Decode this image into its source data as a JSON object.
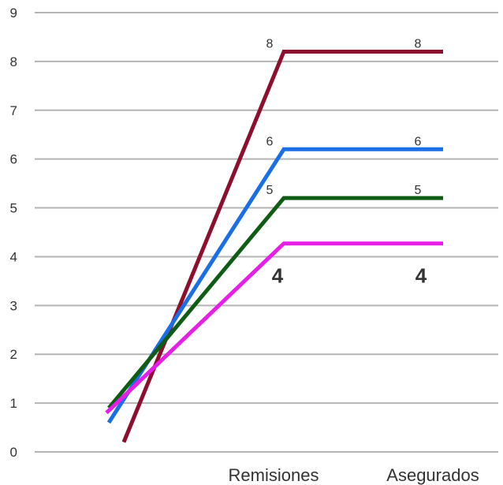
{
  "chart_data": {
    "type": "line",
    "title": "",
    "xlabel": "",
    "ylabel": "",
    "categories": [
      "",
      "Remisiones",
      "Asegurados"
    ],
    "ylim": [
      0,
      9
    ],
    "y_ticks": [
      "0",
      "1",
      "2",
      "3",
      "4",
      "5",
      "6",
      "7",
      "8",
      "9"
    ],
    "grid": true,
    "legend": "none",
    "series": [
      {
        "color": "#8c0f2e",
        "values": [
          0.2,
          8.2,
          8.2
        ],
        "labels": [
          "",
          "8",
          "8"
        ],
        "label_style": "normal"
      },
      {
        "color": "#1a6ee6",
        "values": [
          0.6,
          6.2,
          6.2
        ],
        "labels": [
          "",
          "6",
          "6"
        ],
        "label_style": "normal"
      },
      {
        "color": "#0f5c14",
        "values": [
          0.9,
          5.2,
          5.2
        ],
        "labels": [
          "",
          "5",
          "5"
        ],
        "label_style": "normal"
      },
      {
        "color": "#e61ee6",
        "values": [
          0.8,
          4.27,
          4.27
        ],
        "labels": [
          "",
          "4",
          "4"
        ],
        "label_style": "big"
      }
    ]
  }
}
